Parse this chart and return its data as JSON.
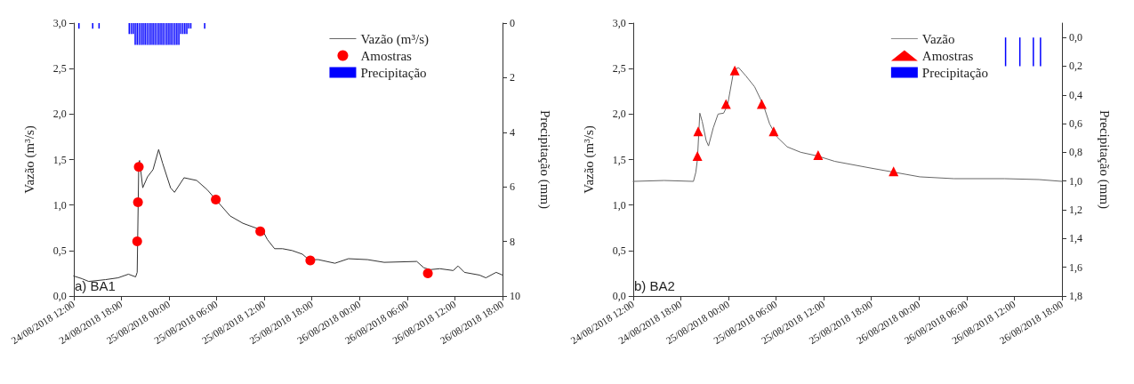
{
  "chart_data": [
    {
      "type": "line",
      "ylabel": "Vazão (m³/s)",
      "y2label": "Precipitação (mm)",
      "legend": "top right",
      "annotations": [
        "a) BA1"
      ],
      "xlim": [
        "2018-08-24T12:00",
        "2018-08-26T18:00"
      ],
      "xticks": [
        {
          "value": "2018-08-24T12:00",
          "label": "24/08/2018 12:00"
        },
        {
          "value": "2018-08-24T18:00",
          "label": "24/08/2018 18:00"
        },
        {
          "value": "2018-08-25T00:00",
          "label": "25/08/2018 00:00"
        },
        {
          "value": "2018-08-25T06:00",
          "label": "25/08/2018 06:00"
        },
        {
          "value": "2018-08-25T12:00",
          "label": "25/08/2018 12:00"
        },
        {
          "value": "2018-08-25T18:00",
          "label": "25/08/2018 18:00"
        },
        {
          "value": "2018-08-26T00:00",
          "label": "26/08/2018 00:00"
        },
        {
          "value": "2018-08-26T06:00",
          "label": "26/08/2018 06:00"
        },
        {
          "value": "2018-08-26T12:00",
          "label": "26/08/2018 12:00"
        },
        {
          "value": "2018-08-26T18:00",
          "label": "26/08/2018 18:00"
        }
      ],
      "ylim": [
        0,
        3
      ],
      "yticks": [
        {
          "value": 0,
          "label": "0,0"
        },
        {
          "value": 0.5,
          "label": "0,5"
        },
        {
          "value": 1,
          "label": "1,0"
        },
        {
          "value": 1.5,
          "label": "1,5"
        },
        {
          "value": 2,
          "label": "2,0"
        },
        {
          "value": 2.5,
          "label": "2,5"
        },
        {
          "value": 3,
          "label": "3,0"
        }
      ],
      "y2lim": [
        10,
        0
      ],
      "y2ticks": [
        0,
        2,
        4,
        6,
        8,
        10
      ],
      "series": [
        {
          "name": "Vazão (m³/s)",
          "color": "#333333",
          "x": [
            "2018-08-24T12:00",
            "2018-08-24T13:04",
            "2018-08-24T13:54",
            "2018-08-24T16:00",
            "2018-08-24T17:36",
            "2018-08-24T18:54",
            "2018-08-24T19:48",
            "2018-08-24T20:00",
            "2018-08-24T20:12",
            "2018-08-24T20:18",
            "2018-08-24T20:42",
            "2018-08-24T21:18",
            "2018-08-24T22:00",
            "2018-08-24T22:42",
            "2018-08-24T23:12",
            "2018-08-25T00:12",
            "2018-08-25T00:42",
            "2018-08-25T01:54",
            "2018-08-25T03:30",
            "2018-08-25T04:48",
            "2018-08-25T06:00",
            "2018-08-25T07:42",
            "2018-08-25T09:18",
            "2018-08-25T11:48",
            "2018-08-25T12:24",
            "2018-08-25T13:18",
            "2018-08-25T14:18",
            "2018-08-25T15:30",
            "2018-08-25T16:48",
            "2018-08-25T17:36",
            "2018-08-25T18:48",
            "2018-08-25T20:54",
            "2018-08-25T22:36",
            "2018-08-26T01:00",
            "2018-08-26T03:06",
            "2018-08-26T07:12",
            "2018-08-26T08:06",
            "2018-08-26T08:54",
            "2018-08-26T10:06",
            "2018-08-26T11:48",
            "2018-08-26T12:24",
            "2018-08-26T13:12",
            "2018-08-26T15:06",
            "2018-08-26T15:54",
            "2018-08-26T17:12",
            "2018-08-26T18:00"
          ],
          "values": [
            0.22,
            0.19,
            0.16,
            0.18,
            0.2,
            0.24,
            0.21,
            0.26,
            1.46,
            1.49,
            1.19,
            1.31,
            1.39,
            1.61,
            1.46,
            1.19,
            1.14,
            1.3,
            1.27,
            1.17,
            1.05,
            0.88,
            0.8,
            0.72,
            0.62,
            0.52,
            0.52,
            0.5,
            0.46,
            0.4,
            0.4,
            0.36,
            0.41,
            0.4,
            0.37,
            0.38,
            0.31,
            0.29,
            0.3,
            0.28,
            0.33,
            0.26,
            0.23,
            0.2,
            0.26,
            0.23
          ]
        },
        {
          "name": "Amostras",
          "type": "scatter",
          "marker": "circle",
          "color": "#ff0000",
          "x": [
            "2018-08-24T20:00",
            "2018-08-24T20:06",
            "2018-08-24T20:12",
            "2018-08-25T05:54",
            "2018-08-25T11:30",
            "2018-08-25T17:48",
            "2018-08-26T08:36"
          ],
          "values": [
            0.6,
            1.03,
            1.42,
            1.06,
            0.71,
            0.39,
            0.25
          ]
        },
        {
          "name": "Precipitação",
          "type": "bar",
          "axis": "y2",
          "color": "#0000ff",
          "x": [
            "2018-08-24T12:40",
            "2018-08-24T14:24",
            "2018-08-24T15:12",
            "2018-08-24T19:00",
            "2018-08-24T19:15",
            "2018-08-24T19:30",
            "2018-08-24T19:45",
            "2018-08-24T20:00",
            "2018-08-24T20:15",
            "2018-08-24T20:30",
            "2018-08-24T20:45",
            "2018-08-24T21:00",
            "2018-08-24T21:15",
            "2018-08-24T21:30",
            "2018-08-24T21:45",
            "2018-08-24T22:00",
            "2018-08-24T22:15",
            "2018-08-24T22:30",
            "2018-08-24T22:45",
            "2018-08-24T23:00",
            "2018-08-24T23:15",
            "2018-08-24T23:30",
            "2018-08-24T23:45",
            "2018-08-25T00:00",
            "2018-08-25T00:15",
            "2018-08-25T00:30",
            "2018-08-25T00:45",
            "2018-08-25T01:00",
            "2018-08-25T01:15",
            "2018-08-25T01:30",
            "2018-08-25T01:45",
            "2018-08-25T02:00",
            "2018-08-25T02:15",
            "2018-08-25T02:30",
            "2018-08-25T02:45",
            "2018-08-25T04:30"
          ],
          "values": [
            0.2,
            0.2,
            0.2,
            0.4,
            0.4,
            0.4,
            0.8,
            0.8,
            0.8,
            0.8,
            0.8,
            0.8,
            0.8,
            0.8,
            0.8,
            0.8,
            0.8,
            0.8,
            0.8,
            0.8,
            0.8,
            0.8,
            0.8,
            0.8,
            0.8,
            0.8,
            0.8,
            0.8,
            0.8,
            0.4,
            0.4,
            0.4,
            0.4,
            0.2,
            0.2,
            0.2
          ]
        }
      ]
    },
    {
      "type": "line",
      "ylabel": "Vazão (m³/s)",
      "y2label": "Precipitação (mm)",
      "legend": "top right",
      "annotations": [
        "b) BA2"
      ],
      "xlim": [
        "2018-08-24T12:00",
        "2018-08-26T18:00"
      ],
      "xticks": [
        {
          "value": "2018-08-24T12:00",
          "label": "24/08/2018 12:00"
        },
        {
          "value": "2018-08-24T18:00",
          "label": "24/08/2018 18:00"
        },
        {
          "value": "2018-08-25T00:00",
          "label": "25/08/2018 00:00"
        },
        {
          "value": "2018-08-25T06:00",
          "label": "25/08/2018 06:00"
        },
        {
          "value": "2018-08-25T12:00",
          "label": "25/08/2018 12:00"
        },
        {
          "value": "2018-08-25T18:00",
          "label": "25/08/2018 18:00"
        },
        {
          "value": "2018-08-26T00:00",
          "label": "26/08/2018 00:00"
        },
        {
          "value": "2018-08-26T06:00",
          "label": "26/08/2018 06:00"
        },
        {
          "value": "2018-08-26T12:00",
          "label": "26/08/2018 12:00"
        },
        {
          "value": "2018-08-26T18:00",
          "label": "26/08/2018 18:00"
        }
      ],
      "ylim": [
        0,
        3
      ],
      "yticks": [
        {
          "value": 0,
          "label": "0,0"
        },
        {
          "value": 0.5,
          "label": "0,5"
        },
        {
          "value": 1,
          "label": "1,0"
        },
        {
          "value": 1.5,
          "label": "1,5"
        },
        {
          "value": 2,
          "label": "2,0"
        },
        {
          "value": 2.5,
          "label": "2,5"
        },
        {
          "value": 3,
          "label": "3,0"
        }
      ],
      "y2lim": [
        1.8,
        -0.1
      ],
      "y2ticks": [
        {
          "value": 0,
          "label": "0,0"
        },
        {
          "value": 0.2,
          "label": "0,2"
        },
        {
          "value": 0.4,
          "label": "0,4"
        },
        {
          "value": 0.6,
          "label": "0,6"
        },
        {
          "value": 0.8,
          "label": "0,8"
        },
        {
          "value": 1,
          "label": "1,0"
        },
        {
          "value": 1.2,
          "label": "1,2"
        },
        {
          "value": 1.4,
          "label": "1,4"
        },
        {
          "value": 1.6,
          "label": "1,6"
        },
        {
          "value": 1.8,
          "label": "1,8"
        }
      ],
      "series": [
        {
          "name": "Vazão",
          "color": "#666666",
          "x": [
            "2018-08-24T12:00",
            "2018-08-24T15:54",
            "2018-08-24T19:36",
            "2018-08-24T19:54",
            "2018-08-24T20:06",
            "2018-08-24T20:24",
            "2018-08-24T20:42",
            "2018-08-24T21:12",
            "2018-08-24T21:30",
            "2018-08-24T22:06",
            "2018-08-24T22:42",
            "2018-08-24T23:24",
            "2018-08-24T23:54",
            "2018-08-25T00:42",
            "2018-08-25T01:18",
            "2018-08-25T02:12",
            "2018-08-25T03:18",
            "2018-08-25T04:24",
            "2018-08-25T05:12",
            "2018-08-25T06:06",
            "2018-08-25T07:24",
            "2018-08-25T09:06",
            "2018-08-25T11:12",
            "2018-08-25T13:24",
            "2018-08-25T17:42",
            "2018-08-25T20:54",
            "2018-08-26T00:06",
            "2018-08-26T04:24",
            "2018-08-26T10:48",
            "2018-08-26T15:06",
            "2018-08-26T18:00"
          ],
          "values": [
            1.26,
            1.27,
            1.26,
            1.36,
            1.5,
            2.01,
            1.92,
            1.71,
            1.65,
            1.85,
            2.0,
            2.01,
            2.1,
            2.49,
            2.51,
            2.42,
            2.3,
            2.1,
            1.89,
            1.75,
            1.64,
            1.58,
            1.54,
            1.48,
            1.41,
            1.36,
            1.31,
            1.29,
            1.29,
            1.28,
            1.26
          ]
        },
        {
          "name": "Amostras",
          "type": "scatter",
          "marker": "triangle",
          "color": "#ff0000",
          "x": [
            "2018-08-24T20:06",
            "2018-08-24T20:12",
            "2018-08-24T23:42",
            "2018-08-25T00:48",
            "2018-08-25T04:12",
            "2018-08-25T05:42",
            "2018-08-25T11:18",
            "2018-08-25T20:48"
          ],
          "values": [
            1.54,
            1.81,
            2.11,
            2.48,
            2.11,
            1.81,
            1.55,
            1.37
          ]
        },
        {
          "name": "Precipitação",
          "type": "bar",
          "axis": "y2",
          "color": "#0000ff",
          "x": [
            "2018-08-26T10:54",
            "2018-08-26T12:42",
            "2018-08-26T14:24",
            "2018-08-26T15:18"
          ],
          "values": [
            0.2,
            0.2,
            0.2,
            0.2
          ]
        }
      ]
    }
  ]
}
